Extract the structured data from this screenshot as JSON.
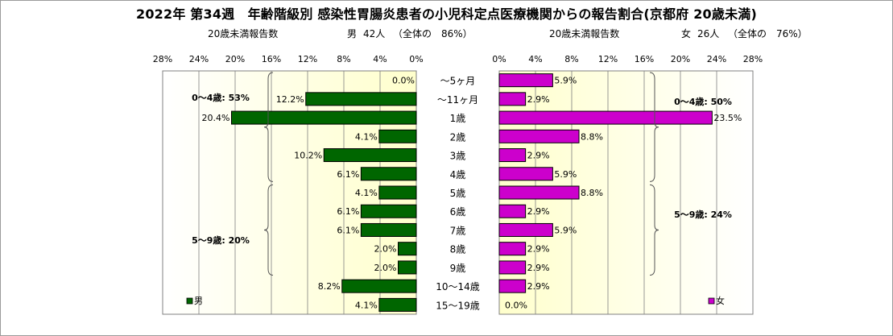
{
  "title": "2022年 第34週　年齢階級別 感染性胃腸炎患者の小児科定点医療機関からの報告割合(京都府 20歳未満)",
  "left_header": {
    "label": "20歳未満報告数",
    "sex": "男",
    "count": "42人",
    "share": "（全体の　86%）"
  },
  "right_header": {
    "label": "20歳未満報告数",
    "sex": "女",
    "count": "26人",
    "share": "（全体の　76%）"
  },
  "chart_data": {
    "type": "bar",
    "orientation": "horizontal",
    "layout": "population-pyramid",
    "categories": [
      "～5ヶ月",
      "～11ヶ月",
      "1歳",
      "2歳",
      "3歳",
      "4歳",
      "5歳",
      "6歳",
      "7歳",
      "8歳",
      "9歳",
      "10～14歳",
      "15～19歳"
    ],
    "x_ticks": [
      "0%",
      "4%",
      "8%",
      "12%",
      "16%",
      "20%",
      "24%",
      "28%"
    ],
    "xlim": [
      0,
      28
    ],
    "unit": "%",
    "series": [
      {
        "name": "男",
        "side": "left",
        "color": "#006600",
        "labels": [
          "0.0%",
          "12.2%",
          "20.4%",
          "4.1%",
          "10.2%",
          "6.1%",
          "4.1%",
          "6.1%",
          "6.1%",
          "2.0%",
          "2.0%",
          "8.2%",
          "4.1%"
        ],
        "values": [
          0.0,
          12.2,
          20.4,
          4.1,
          10.2,
          6.1,
          4.1,
          6.1,
          6.1,
          2.0,
          2.0,
          8.2,
          4.1
        ]
      },
      {
        "name": "女",
        "side": "right",
        "color": "#cc00cc",
        "labels": [
          "5.9%",
          "2.9%",
          "23.5%",
          "8.8%",
          "2.9%",
          "5.9%",
          "8.8%",
          "2.9%",
          "5.9%",
          "2.9%",
          "2.9%",
          "2.9%",
          "0.0%"
        ],
        "values": [
          5.9,
          2.9,
          23.5,
          8.8,
          2.9,
          5.9,
          8.8,
          2.9,
          5.9,
          2.9,
          2.9,
          2.9,
          0.0
        ]
      }
    ],
    "group_annotations": {
      "male": [
        {
          "text": "0～4歳: 53%",
          "from": 0,
          "to": 5
        },
        {
          "text": "5～9歳: 20%",
          "from": 6,
          "to": 10
        }
      ],
      "female": [
        {
          "text": "0～4歳: 50%",
          "from": 0,
          "to": 5
        },
        {
          "text": "5～9歳: 24%",
          "from": 6,
          "to": 10
        }
      ]
    },
    "grid": true,
    "plot_background": "#ffffcc",
    "legend": {
      "male": {
        "label": "男",
        "placement": "bottom-left"
      },
      "female": {
        "label": "女",
        "placement": "bottom-right"
      }
    }
  }
}
